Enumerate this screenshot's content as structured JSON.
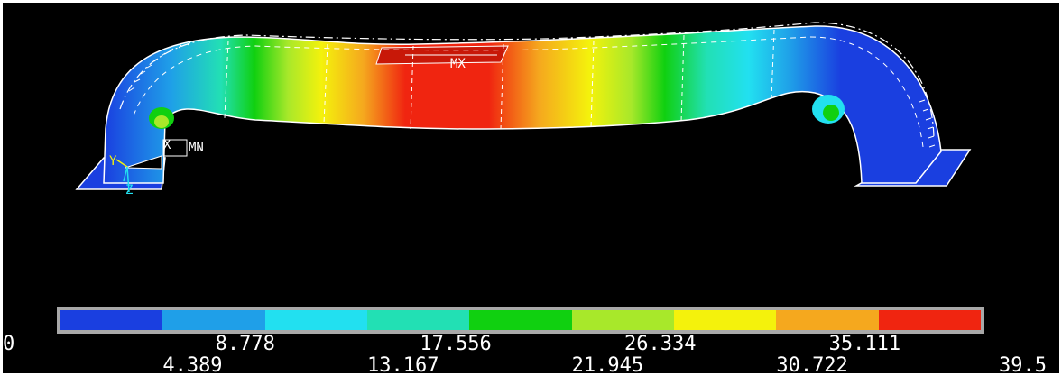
{
  "model": {
    "max_label": "MX",
    "min_label": "MN",
    "triad_labels": [
      "X",
      "Y",
      "Z"
    ]
  },
  "legend": {
    "colors": [
      "#1a3fe0",
      "#1f9fe8",
      "#22e0f0",
      "#22e0b4",
      "#10d010",
      "#a8e82a",
      "#f4f20c",
      "#f5a81e",
      "#f02510"
    ],
    "top_labels": [
      "0",
      "8.778",
      "17.556",
      "26.334",
      "35.111"
    ],
    "bottom_labels": [
      "4.389",
      "13.167",
      "21.945",
      "30.722",
      "39.5"
    ]
  }
}
